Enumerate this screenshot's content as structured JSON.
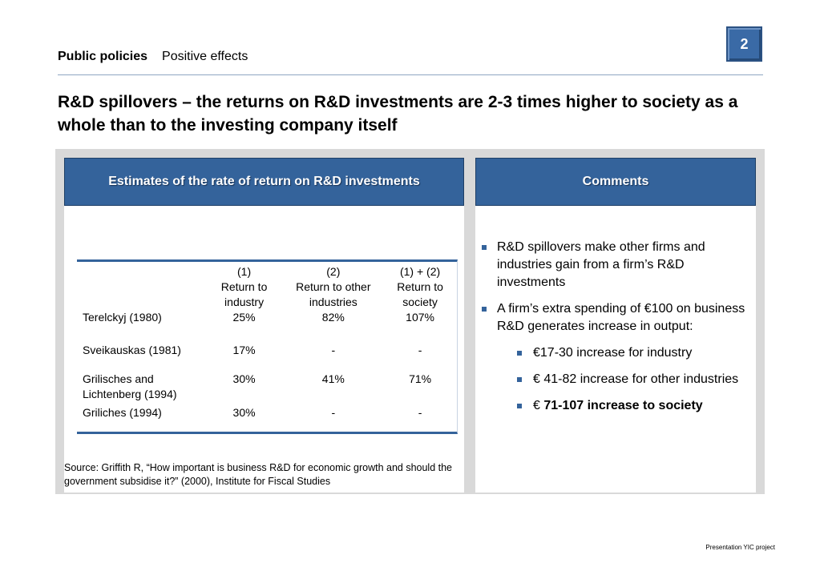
{
  "header": {
    "section": "Public policies",
    "subsection": "Positive effects",
    "page_number": "2"
  },
  "title": "R&D spillovers – the returns on R&D investments are 2-3 times higher to society as a whole than to the investing company itself",
  "left_panel": {
    "heading": "Estimates of the rate of return on R&D investments",
    "table": {
      "columns": [
        [
          "(1)",
          "Return to",
          "industry"
        ],
        [
          "(2)",
          "Return to other",
          "industries"
        ],
        [
          "(1)  + (2)",
          "Return to",
          "society"
        ]
      ],
      "rows": [
        {
          "name": "Terelckyj (1980)",
          "industry": "25%",
          "other": "82%",
          "society": "107%"
        },
        {
          "name": "Sveikauskas (1981)",
          "industry": "17%",
          "other": "-",
          "society": "-"
        },
        {
          "name": "Grilisches and Lichtenberg (1994)",
          "industry": "30%",
          "other": "41%",
          "society": "71%"
        },
        {
          "name": "Griliches (1994)",
          "industry": "30%",
          "other": "-",
          "society": "-"
        }
      ]
    },
    "source": "Source: Griffith R, “How important is business R&D for economic growth and should the government subsidise it?” (2000), Institute for Fiscal Studies"
  },
  "right_panel": {
    "heading": "Comments",
    "bullets": [
      "R&D spillovers make other firms and industries gain from a firm’s R&D investments",
      "A firm’s extra spending of €100 on business R&D generates increase in output:"
    ],
    "sub_bullets": [
      "€17-30 increase for industry",
      "€ 41-82 increase for other industries"
    ],
    "last_sub_bullet_prefix": "€ ",
    "last_sub_bullet_bold": "71-107 increase to society"
  },
  "footer": "Presentation YIC project",
  "colors": {
    "accent": "#34639b",
    "panel_background": "#d9d9d9"
  }
}
